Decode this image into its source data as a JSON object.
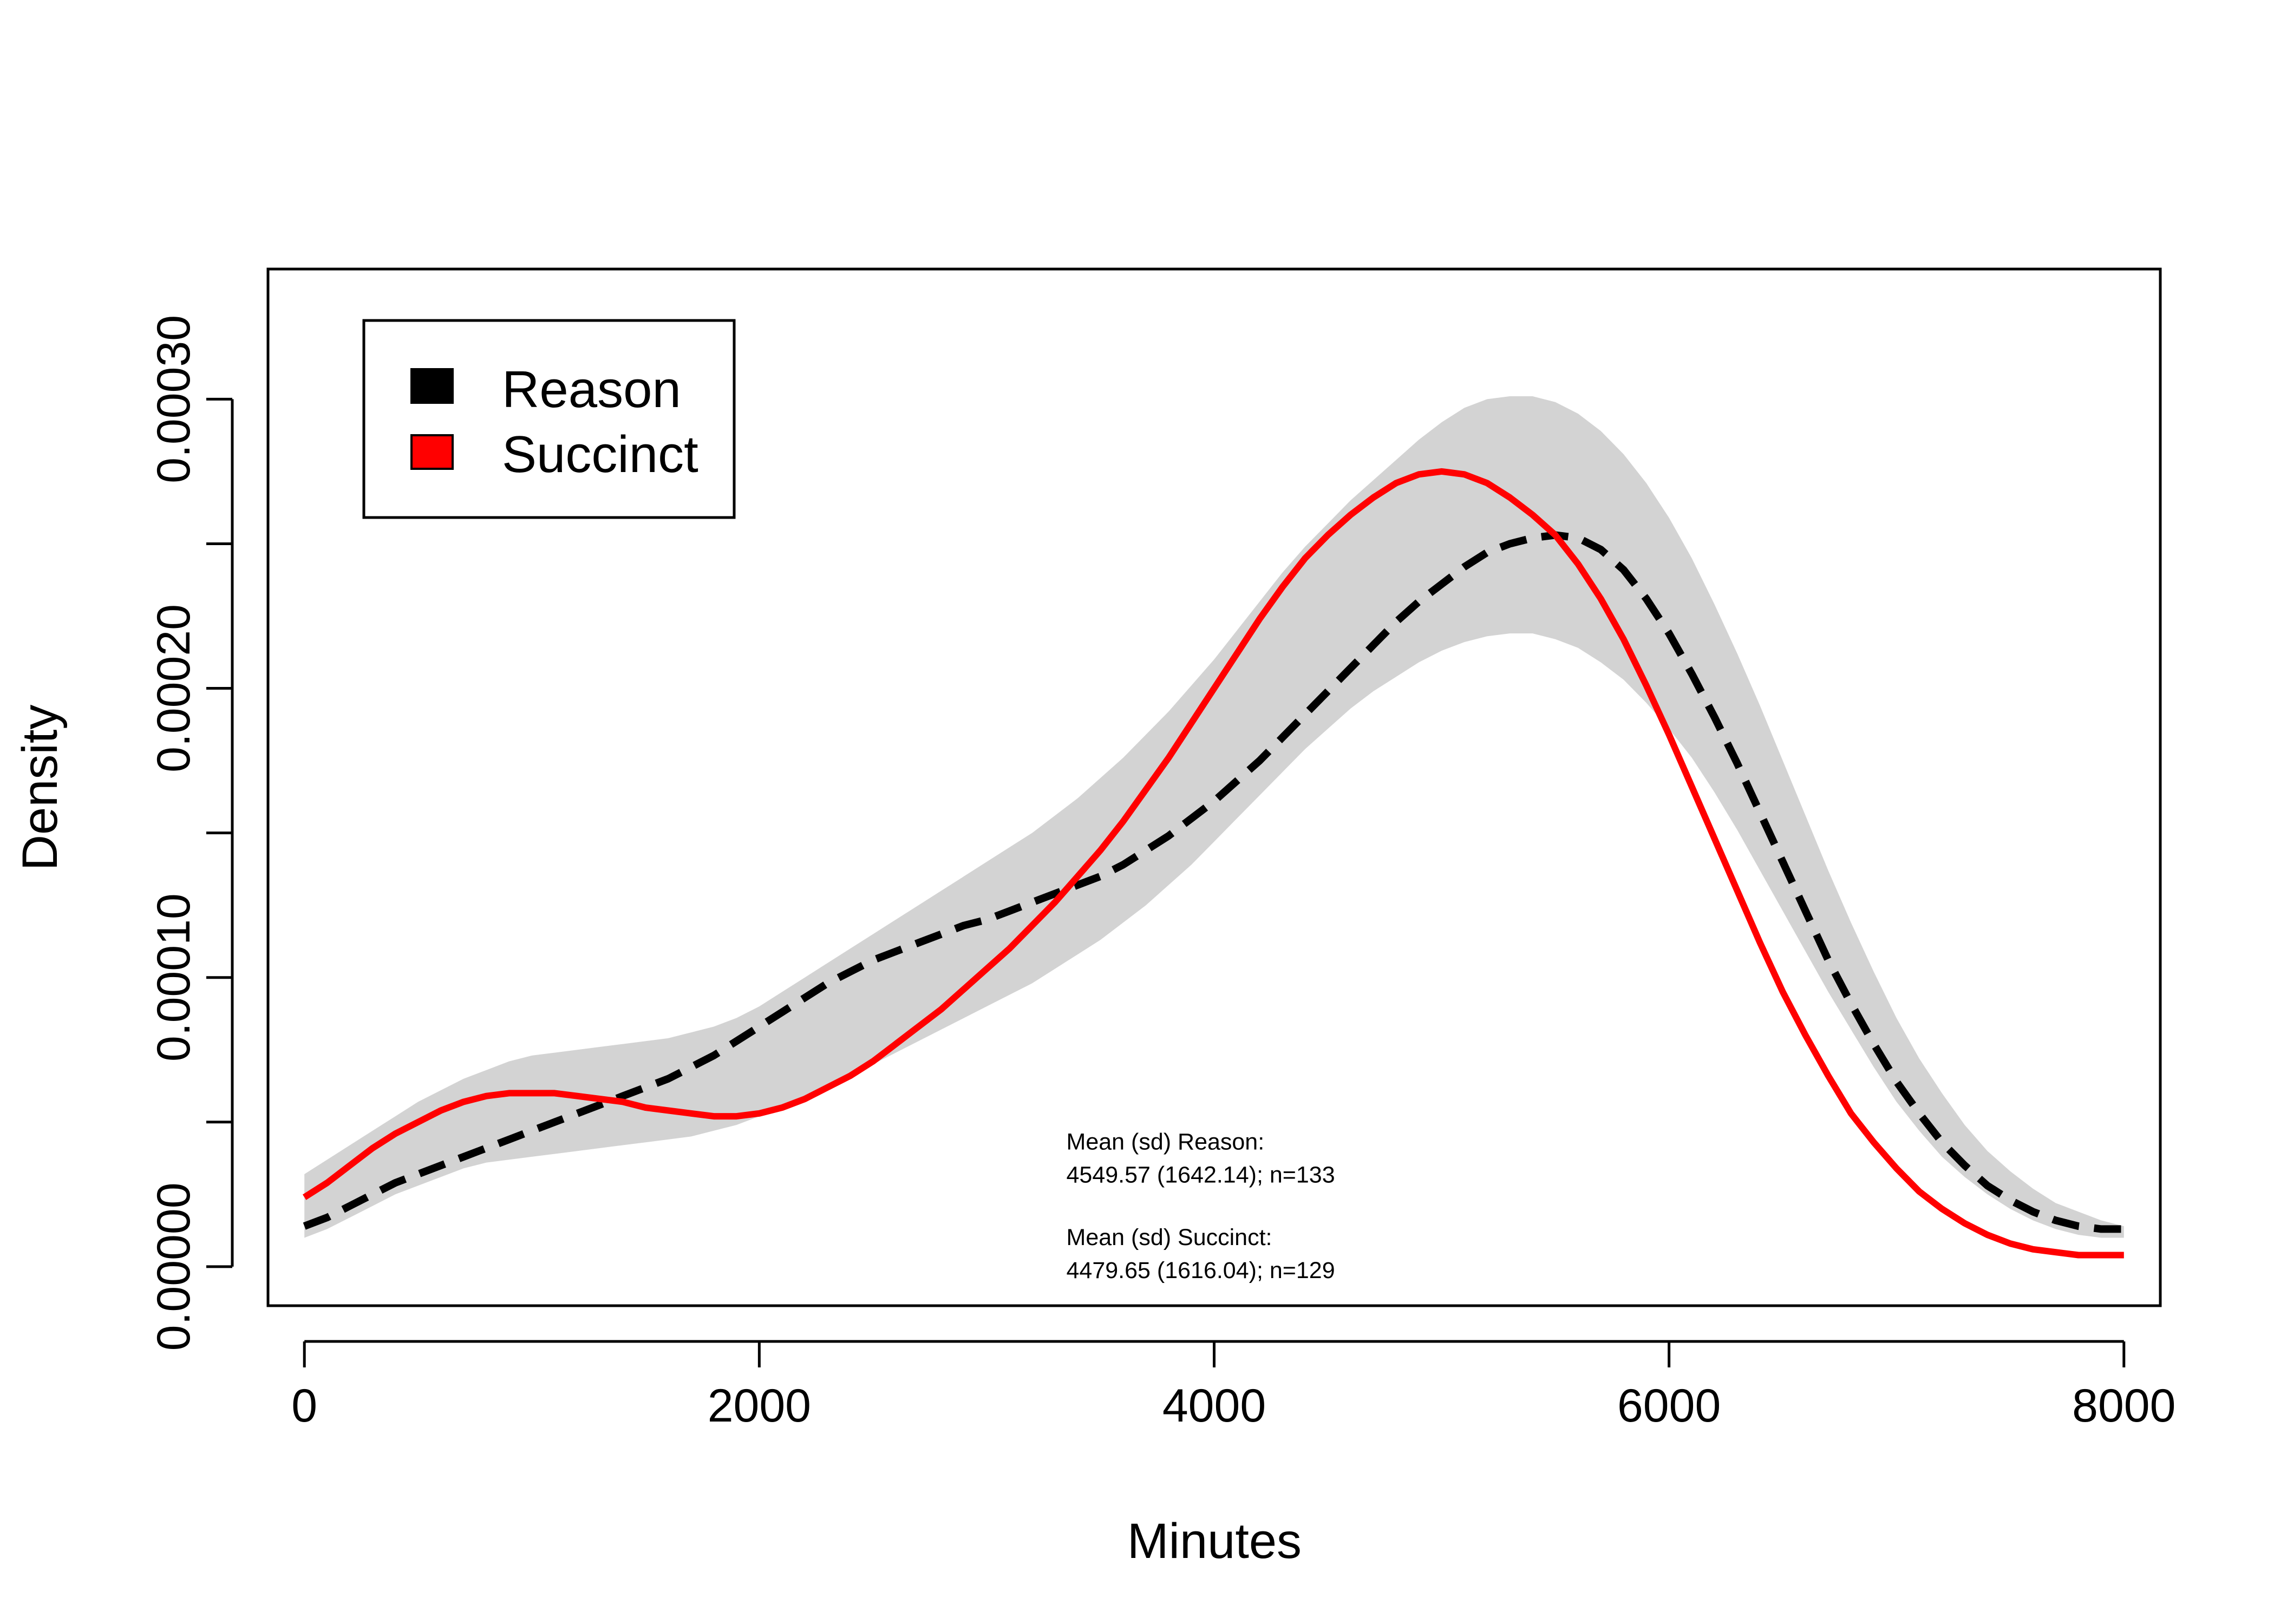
{
  "chart_data": {
    "type": "line",
    "title": "",
    "xlabel": "Minutes",
    "ylabel": "Density",
    "xlim": [
      -160,
      8160
    ],
    "ylim": [
      -1.35e-05,
      0.000345
    ],
    "xticks": [
      0,
      2000,
      4000,
      6000,
      8000
    ],
    "xtick_labels": [
      "0",
      "2000",
      "4000",
      "6000",
      "8000"
    ],
    "yticks": [
      0,
      5e-05,
      0.0001,
      0.00015,
      0.0002,
      0.00025,
      0.0003
    ],
    "ytick_labels": [
      "0.00000",
      "",
      "0.00010",
      "",
      "0.00020",
      "",
      "0.00030"
    ],
    "grid": false,
    "legend": {
      "position": "top-left"
    },
    "x": [
      0,
      100,
      200,
      300,
      400,
      500,
      600,
      700,
      800,
      900,
      1000,
      1100,
      1200,
      1300,
      1400,
      1500,
      1600,
      1700,
      1800,
      1900,
      2000,
      2100,
      2200,
      2300,
      2400,
      2500,
      2600,
      2700,
      2800,
      2900,
      3000,
      3100,
      3200,
      3300,
      3400,
      3500,
      3600,
      3700,
      3800,
      3900,
      4000,
      4100,
      4200,
      4300,
      4400,
      4500,
      4600,
      4700,
      4800,
      4900,
      5000,
      5100,
      5200,
      5300,
      5400,
      5500,
      5600,
      5700,
      5800,
      5900,
      6000,
      6100,
      6200,
      6300,
      6400,
      6500,
      6600,
      6700,
      6800,
      6900,
      7000,
      7100,
      7200,
      7300,
      7400,
      7500,
      7600,
      7700,
      7800,
      7900,
      8000
    ],
    "series": [
      {
        "name": "Reason",
        "color": "#000000",
        "line_style": "dashed",
        "values": [
          1.4e-05,
          1.7e-05,
          2.1e-05,
          2.5e-05,
          2.9e-05,
          3.2e-05,
          3.5e-05,
          3.8e-05,
          4.1e-05,
          4.4e-05,
          4.7e-05,
          5e-05,
          5.3e-05,
          5.6e-05,
          5.9e-05,
          6.2e-05,
          6.5e-05,
          6.9e-05,
          7.3e-05,
          7.8e-05,
          8.3e-05,
          8.8e-05,
          9.3e-05,
          9.8e-05,
          0.000102,
          0.000106,
          0.000109,
          0.000112,
          0.000115,
          0.000118,
          0.00012,
          0.000123,
          0.000126,
          0.000129,
          0.000132,
          0.000135,
          0.000139,
          0.000144,
          0.000149,
          0.000155,
          0.000161,
          0.000168,
          0.000175,
          0.000183,
          0.000191,
          0.000199,
          0.000207,
          0.000215,
          0.000223,
          0.00023,
          0.000236,
          0.000242,
          0.000247,
          0.00025,
          0.000252,
          0.000253,
          0.000252,
          0.000248,
          0.000241,
          0.000231,
          0.000219,
          0.000205,
          0.00019,
          0.000174,
          0.000157,
          0.00014,
          0.000123,
          0.000106,
          9.1e-05,
          7.7e-05,
          6.4e-05,
          5.3e-05,
          4.3e-05,
          3.5e-05,
          2.8e-05,
          2.3e-05,
          1.9e-05,
          1.6e-05,
          1.4e-05,
          1.3e-05,
          1.3e-05
        ]
      },
      {
        "name": "Succinct",
        "color": "#ff0000",
        "line_style": "solid",
        "values": [
          2.4e-05,
          2.9e-05,
          3.5e-05,
          4.1e-05,
          4.6e-05,
          5e-05,
          5.4e-05,
          5.7e-05,
          5.9e-05,
          6e-05,
          6e-05,
          6e-05,
          5.9e-05,
          5.8e-05,
          5.7e-05,
          5.5e-05,
          5.4e-05,
          5.3e-05,
          5.2e-05,
          5.2e-05,
          5.3e-05,
          5.5e-05,
          5.8e-05,
          6.2e-05,
          6.6e-05,
          7.1e-05,
          7.7e-05,
          8.3e-05,
          8.9e-05,
          9.6e-05,
          0.000103,
          0.00011,
          0.000118,
          0.000126,
          0.000135,
          0.000144,
          0.000154,
          0.000165,
          0.000176,
          0.000188,
          0.0002,
          0.000212,
          0.000224,
          0.000235,
          0.000245,
          0.000253,
          0.00026,
          0.000266,
          0.000271,
          0.000274,
          0.000275,
          0.000274,
          0.000271,
          0.000266,
          0.00026,
          0.000253,
          0.000243,
          0.000231,
          0.000217,
          0.000201,
          0.000184,
          0.000166,
          0.000148,
          0.00013,
          0.000112,
          9.5e-05,
          8e-05,
          6.6e-05,
          5.3e-05,
          4.3e-05,
          3.4e-05,
          2.6e-05,
          2e-05,
          1.5e-05,
          1.1e-05,
          8e-06,
          6e-06,
          5e-06,
          4e-06,
          4e-06,
          4e-06
        ]
      }
    ],
    "band": {
      "color": "#d3d3d3",
      "lower": [
        1e-05,
        1.3e-05,
        1.7e-05,
        2.1e-05,
        2.5e-05,
        2.8e-05,
        3.1e-05,
        3.4e-05,
        3.6e-05,
        3.7e-05,
        3.8e-05,
        3.9e-05,
        4e-05,
        4.1e-05,
        4.2e-05,
        4.3e-05,
        4.4e-05,
        4.5e-05,
        4.7e-05,
        4.9e-05,
        5.2e-05,
        5.5e-05,
        5.8e-05,
        6.2e-05,
        6.6e-05,
        7e-05,
        7.4e-05,
        7.8e-05,
        8.2e-05,
        8.6e-05,
        9e-05,
        9.4e-05,
        9.8e-05,
        0.000103,
        0.000108,
        0.000113,
        0.000119,
        0.000125,
        0.000132,
        0.000139,
        0.000147,
        0.000155,
        0.000163,
        0.000171,
        0.000179,
        0.000186,
        0.000193,
        0.000199,
        0.000204,
        0.000209,
        0.000213,
        0.000216,
        0.000218,
        0.000219,
        0.000219,
        0.000217,
        0.000214,
        0.000209,
        0.000203,
        0.000195,
        0.000186,
        0.000176,
        0.000164,
        0.000151,
        0.000137,
        0.000123,
        0.000109,
        9.5e-05,
        8.2e-05,
        6.9e-05,
        5.7e-05,
        4.7e-05,
        3.8e-05,
        3.1e-05,
        2.5e-05,
        2e-05,
        1.6e-05,
        1.3e-05,
        1.1e-05,
        1e-05,
        1e-05
      ],
      "upper": [
        3.2e-05,
        3.7e-05,
        4.2e-05,
        4.7e-05,
        5.2e-05,
        5.7e-05,
        6.1e-05,
        6.5e-05,
        6.8e-05,
        7.1e-05,
        7.3e-05,
        7.4e-05,
        7.5e-05,
        7.6e-05,
        7.7e-05,
        7.8e-05,
        7.9e-05,
        8.1e-05,
        8.3e-05,
        8.6e-05,
        9e-05,
        9.5e-05,
        0.0001,
        0.000105,
        0.00011,
        0.000115,
        0.00012,
        0.000125,
        0.00013,
        0.000135,
        0.00014,
        0.000145,
        0.00015,
        0.000156,
        0.000162,
        0.000169,
        0.000176,
        0.000184,
        0.000192,
        0.000201,
        0.00021,
        0.00022,
        0.00023,
        0.00024,
        0.000249,
        0.000257,
        0.000265,
        0.000272,
        0.000279,
        0.000286,
        0.000292,
        0.000297,
        0.0003,
        0.000301,
        0.000301,
        0.000299,
        0.000295,
        0.000289,
        0.000281,
        0.000271,
        0.000259,
        0.000245,
        0.000229,
        0.000212,
        0.000194,
        0.000175,
        0.000156,
        0.000137,
        0.000119,
        0.000102,
        8.6e-05,
        7.2e-05,
        6e-05,
        4.9e-05,
        4e-05,
        3.3e-05,
        2.7e-05,
        2.2e-05,
        1.9e-05,
        1.6e-05,
        1.4e-05
      ]
    },
    "annotations": [
      {
        "id": "reason",
        "line1": "Mean (sd) Reason:",
        "line2": "4549.57 (1642.14); n=133",
        "anchor_x": 3350,
        "anchor_y": 4.05e-05
      },
      {
        "id": "succinct",
        "line1": "Mean (sd) Succinct:",
        "line2": "4479.65 (1616.04); n=129",
        "anchor_x": 3350,
        "anchor_y": 7.5e-06
      }
    ]
  }
}
